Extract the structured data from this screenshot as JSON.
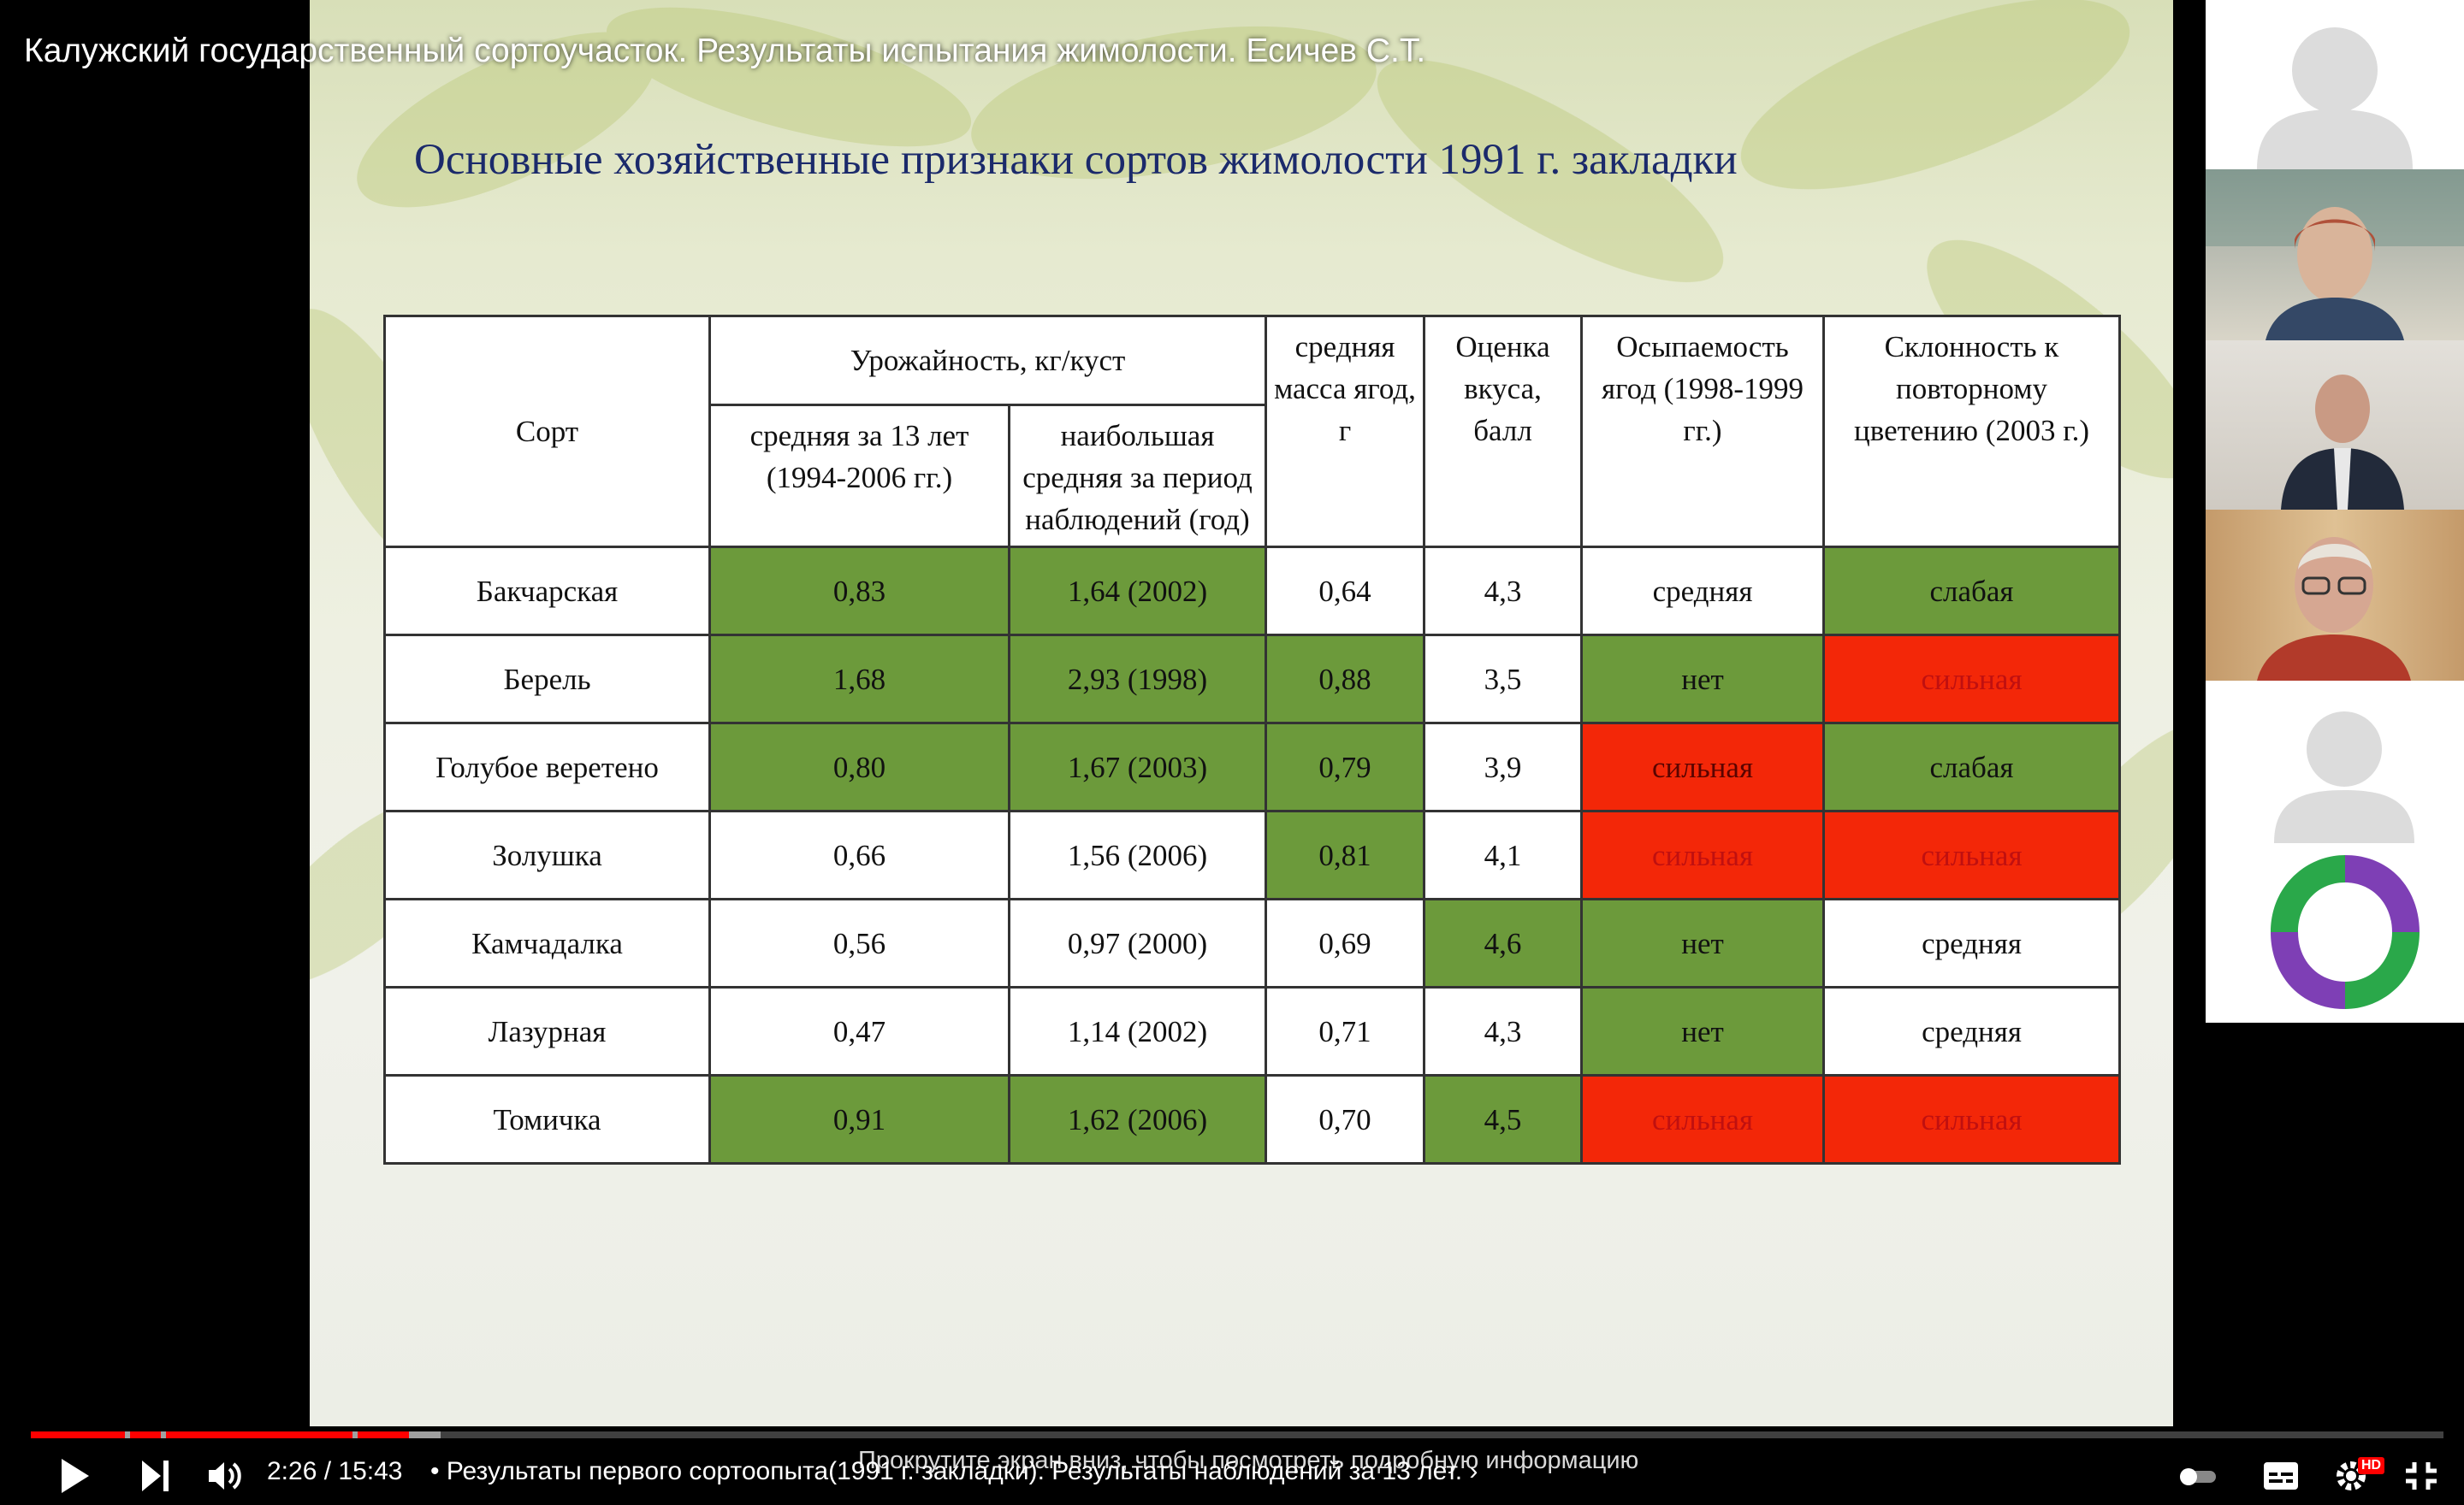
{
  "video": {
    "title": "Калужский государственный сортоучасток. Результаты испытания жимолости. Есичев С.Т.",
    "time": "2:26 / 15:43",
    "chapter": "• Результаты первого сортоопыта(1991 г. закладки). Результаты наблюдений за 13 лет. ›",
    "scroll_hint": "Прокрутите экран вниз, чтобы посмотреть подробную информацию",
    "hd_badge": "HD"
  },
  "slide": {
    "title": "Основные хозяйственные признаки сортов жимолости 1991 г. закладки",
    "headers": {
      "variety": "Сорт",
      "yield_group": "Урожайность, кг/куст",
      "yield_avg": "средняя за 13 лет (1994-2006 гг.)",
      "yield_max": "наибольшая средняя за период наблюдений (год)",
      "berry_mass": "средняя масса ягод, г",
      "taste": "Оценка вкуса, балл",
      "shedding": "Осыпаемость ягод (1998-1999 гг.)",
      "reflowering": "Склонность к повторному цветению (2003 г.)"
    },
    "rows": [
      {
        "variety": "Бакчарская",
        "yield_avg": "0,83",
        "yield_max": "1,64 (2002)",
        "berry_mass": "0,64",
        "taste": "4,3",
        "shedding": "средняя",
        "reflowering": "слабая"
      },
      {
        "variety": "Берель",
        "yield_avg": "1,68",
        "yield_max": "2,93 (1998)",
        "berry_mass": "0,88",
        "taste": "3,5",
        "shedding": "нет",
        "reflowering": "сильная"
      },
      {
        "variety": "Голубое веретено",
        "yield_avg": "0,80",
        "yield_max": "1,67 (2003)",
        "berry_mass": "0,79",
        "taste": "3,9",
        "shedding": "сильная",
        "reflowering": "слабая"
      },
      {
        "variety": "Золушка",
        "yield_avg": "0,66",
        "yield_max": "1,56 (2006)",
        "berry_mass": "0,81",
        "taste": "4,1",
        "shedding": "сильная",
        "reflowering": "сильная"
      },
      {
        "variety": "Камчадалка",
        "yield_avg": "0,56",
        "yield_max": "0,97 (2000)",
        "berry_mass": "0,69",
        "taste": "4,6",
        "shedding": "нет",
        "reflowering": "средняя"
      },
      {
        "variety": "Лазурная",
        "yield_avg": "0,47",
        "yield_max": "1,14 (2002)",
        "berry_mass": "0,71",
        "taste": "4,3",
        "shedding": "нет",
        "reflowering": "средняя"
      },
      {
        "variety": "Томичка",
        "yield_avg": "0,91",
        "yield_max": "1,62 (2006)",
        "berry_mass": "0,70",
        "taste": "4,5",
        "shedding": "сильная",
        "reflowering": "сильная"
      }
    ]
  },
  "colors": {
    "highlight_green": "#6c9a3b",
    "highlight_red": "#f32708",
    "title_blue": "#1b2a6b",
    "progress_red": "#ff0000"
  },
  "playback": {
    "played_fraction": 0.155,
    "loaded_fraction": 0.17
  },
  "icons": [
    "play-icon",
    "next-icon",
    "volume-icon",
    "autoplay-toggle-icon",
    "subtitles-icon",
    "settings-icon",
    "fullscreen-icon",
    "watch-later-icon",
    "share-icon",
    "avatar-placeholder-icon",
    "logo-icon"
  ]
}
